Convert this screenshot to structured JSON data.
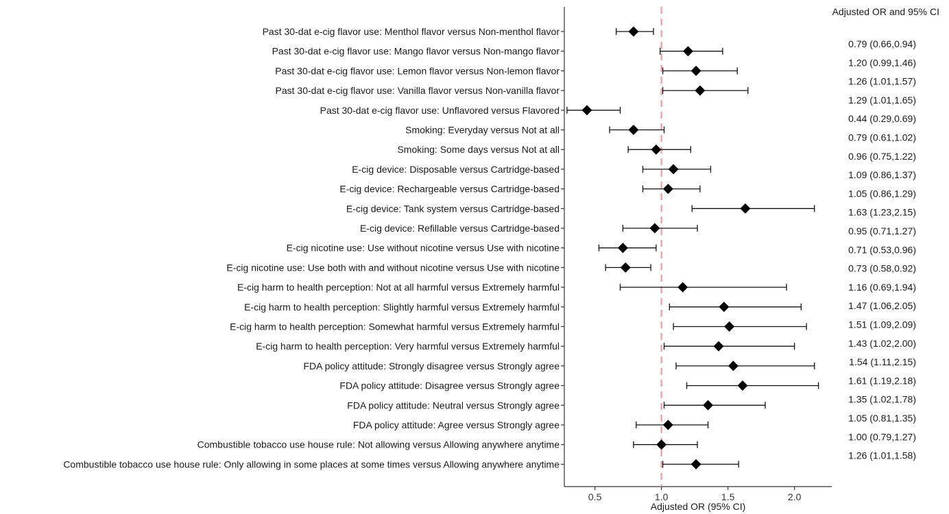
{
  "chart_data": {
    "type": "scatter",
    "subtype": "forest-plot",
    "xlabel": "Adjusted OR (95% CI)",
    "ci_header": "Adjusted OR and 95% CI",
    "xlim": [
      0.27,
      2.28
    ],
    "xticks": [
      0.5,
      1.0,
      1.5,
      2.0
    ],
    "xtick_labels": [
      "0.5",
      "1.0",
      "1.5",
      "2.0"
    ],
    "reference_line": 1.0,
    "reference_color": "#f4a0a0",
    "marker": "diamond",
    "grid": false,
    "rows": [
      {
        "label": "Past 30-dat e-cig flavor use: Menthol flavor versus Non-menthol flavor",
        "or": 0.79,
        "lo": 0.66,
        "hi": 0.94,
        "ci_text": "0.79 (0.66,0.94)"
      },
      {
        "label": "Past 30-dat e-cig flavor use: Mango flavor versus Non-mango flavor",
        "or": 1.2,
        "lo": 0.99,
        "hi": 1.46,
        "ci_text": "1.20 (0.99,1.46)"
      },
      {
        "label": "Past 30-dat e-cig flavor use: Lemon flavor versus Non-lemon flavor",
        "or": 1.26,
        "lo": 1.01,
        "hi": 1.57,
        "ci_text": "1.26 (1.01,1.57)"
      },
      {
        "label": "Past 30-dat e-cig flavor use: Vanilla flavor versus Non-vanilla flavor",
        "or": 1.29,
        "lo": 1.01,
        "hi": 1.65,
        "ci_text": "1.29 (1.01,1.65)"
      },
      {
        "label": "Past 30-dat e-cig flavor use: Unflavored versus  Flavored",
        "or": 0.44,
        "lo": 0.29,
        "hi": 0.69,
        "ci_text": "0.44 (0.29,0.69)"
      },
      {
        "label": "Smoking: Everyday versus Not at all",
        "or": 0.79,
        "lo": 0.61,
        "hi": 1.02,
        "ci_text": "0.79 (0.61,1.02)"
      },
      {
        "label": "Smoking: Some days versus Not at all",
        "or": 0.96,
        "lo": 0.75,
        "hi": 1.22,
        "ci_text": "0.96 (0.75,1.22)"
      },
      {
        "label": "E-cig device: Disposable versus Cartridge-based",
        "or": 1.09,
        "lo": 0.86,
        "hi": 1.37,
        "ci_text": "1.09 (0.86,1.37)"
      },
      {
        "label": "E-cig device: Rechargeable versus Cartridge-based",
        "or": 1.05,
        "lo": 0.86,
        "hi": 1.29,
        "ci_text": "1.05 (0.86,1.29)"
      },
      {
        "label": "E-cig device: Tank system versus Cartridge-based",
        "or": 1.63,
        "lo": 1.23,
        "hi": 2.15,
        "ci_text": "1.63 (1.23,2.15)"
      },
      {
        "label": "E-cig device: Refillable versus Cartridge-based",
        "or": 0.95,
        "lo": 0.71,
        "hi": 1.27,
        "ci_text": "0.95 (0.71,1.27)"
      },
      {
        "label": "E-cig nicotine use: Use without nicotine versus Use with nicotine",
        "or": 0.71,
        "lo": 0.53,
        "hi": 0.96,
        "ci_text": "0.71 (0.53,0.96)"
      },
      {
        "label": "E-cig nicotine use: Use both with and without nicotine versus Use with nicotine",
        "or": 0.73,
        "lo": 0.58,
        "hi": 0.92,
        "ci_text": "0.73 (0.58,0.92)"
      },
      {
        "label": "E-cig harm to health perception: Not at all harmful versus Extremely harmful",
        "or": 1.16,
        "lo": 0.69,
        "hi": 1.94,
        "ci_text": "1.16 (0.69,1.94)"
      },
      {
        "label": "E-cig harm to health perception: Slightly harmful versus Extremely harmful",
        "or": 1.47,
        "lo": 1.06,
        "hi": 2.05,
        "ci_text": "1.47 (1.06,2.05)"
      },
      {
        "label": "E-cig harm to health perception: Somewhat harmful versus Extremely harmful",
        "or": 1.51,
        "lo": 1.09,
        "hi": 2.09,
        "ci_text": "1.51 (1.09,2.09)"
      },
      {
        "label": "E-cig harm to health perception: Very harmful versus Extremely harmful",
        "or": 1.43,
        "lo": 1.02,
        "hi": 2.0,
        "ci_text": "1.43 (1.02,2.00)"
      },
      {
        "label": "FDA policy attitude: Strongly disagree versus Strongly agree",
        "or": 1.54,
        "lo": 1.11,
        "hi": 2.15,
        "ci_text": "1.54 (1.11,2.15)"
      },
      {
        "label": "FDA policy attitude: Disagree versus Strongly agree",
        "or": 1.61,
        "lo": 1.19,
        "hi": 2.18,
        "ci_text": "1.61 (1.19,2.18)"
      },
      {
        "label": "FDA policy attitude: Neutral versus Strongly agree",
        "or": 1.35,
        "lo": 1.02,
        "hi": 1.78,
        "ci_text": "1.35 (1.02,1.78)"
      },
      {
        "label": "FDA policy attitude: Agree versus Strongly agree",
        "or": 1.05,
        "lo": 0.81,
        "hi": 1.35,
        "ci_text": "1.05 (0.81,1.35)"
      },
      {
        "label": "Combustible tobacco use house rule: Not allowing versus Allowing anywhere anytime",
        "or": 1.0,
        "lo": 0.79,
        "hi": 1.27,
        "ci_text": "1.00 (0.79,1.27)"
      },
      {
        "label": "Combustible tobacco use house rule: Only allowing in some places at some times versus Allowing anywhere anytime",
        "or": 1.26,
        "lo": 1.01,
        "hi": 1.58,
        "ci_text": "1.26 (1.01,1.58)"
      }
    ]
  }
}
